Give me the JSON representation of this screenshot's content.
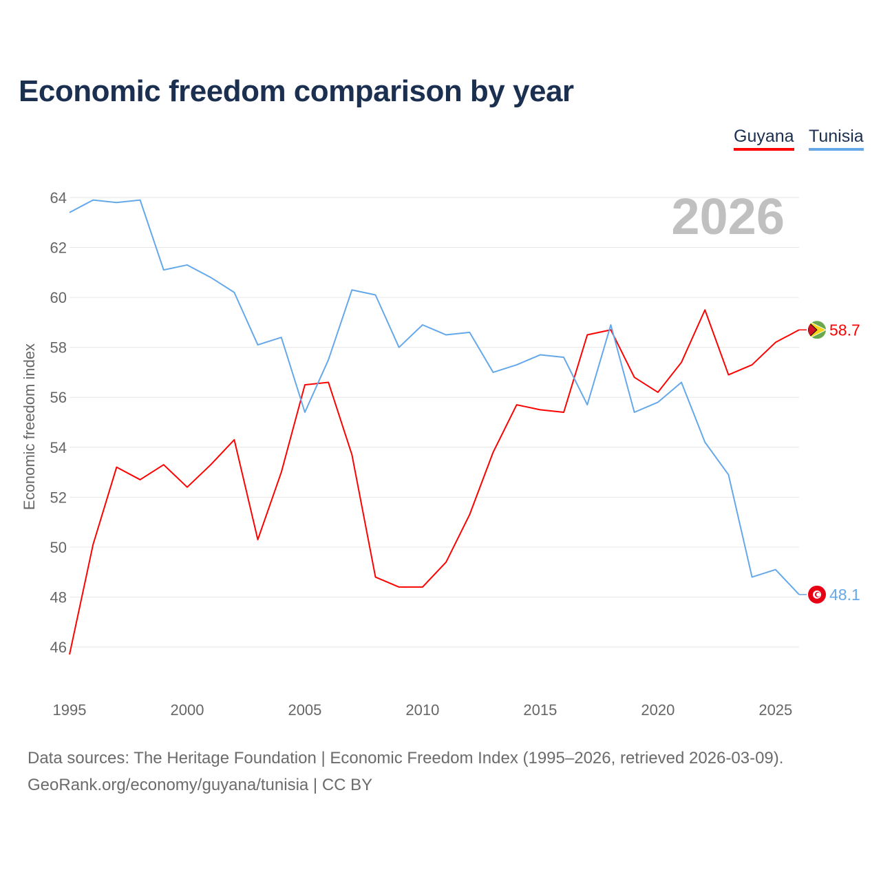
{
  "chart_data": {
    "type": "line",
    "title": "Economic freedom comparison by year",
    "xlabel": "",
    "ylabel": "Economic freedom index",
    "ylim": [
      45,
      65
    ],
    "yticks": [
      46,
      48,
      50,
      52,
      54,
      56,
      58,
      60,
      62,
      64
    ],
    "xticks": [
      1995,
      2000,
      2005,
      2010,
      2015,
      2020,
      2025
    ],
    "grid": true,
    "legend_placement": "top-right",
    "year_watermark": "2026",
    "x": [
      1995,
      1996,
      1997,
      1998,
      1999,
      2000,
      2001,
      2002,
      2003,
      2004,
      2005,
      2006,
      2007,
      2008,
      2009,
      2010,
      2011,
      2012,
      2013,
      2014,
      2015,
      2016,
      2017,
      2018,
      2019,
      2020,
      2021,
      2022,
      2023,
      2024,
      2025,
      2026
    ],
    "series": [
      {
        "name": "Guyana",
        "color": "#ff0000",
        "end_label": "58.7",
        "values": [
          45.7,
          50.1,
          53.2,
          52.7,
          53.3,
          52.4,
          53.3,
          54.3,
          50.3,
          53.0,
          56.5,
          56.6,
          53.7,
          48.8,
          48.4,
          48.4,
          49.4,
          51.3,
          53.8,
          55.7,
          55.5,
          55.4,
          58.5,
          58.7,
          56.8,
          56.2,
          57.4,
          59.5,
          56.9,
          57.3,
          58.2,
          58.7
        ]
      },
      {
        "name": "Tunisia",
        "color": "#64a8ea",
        "end_label": "48.1",
        "values": [
          63.4,
          63.9,
          63.8,
          63.9,
          61.1,
          61.3,
          60.8,
          60.2,
          58.1,
          58.4,
          55.4,
          57.5,
          60.3,
          60.1,
          58.0,
          58.9,
          58.5,
          58.6,
          57.0,
          57.3,
          57.7,
          57.6,
          55.7,
          58.9,
          55.4,
          55.8,
          56.6,
          54.2,
          52.9,
          48.8,
          49.1,
          48.1
        ]
      }
    ]
  },
  "footer": {
    "line1": "Data sources: The Heritage Foundation | Economic Freedom Index (1995–2026, retrieved 2026-03-09).",
    "line2": "GeoRank.org/economy/guyana/tunisia | CC BY"
  }
}
